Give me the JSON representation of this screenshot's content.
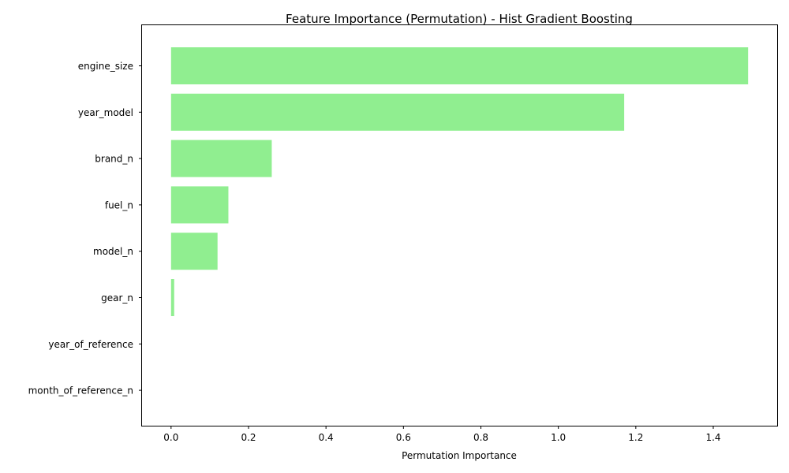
{
  "chart_data": {
    "type": "bar",
    "orientation": "horizontal",
    "title": "Feature Importance (Permutation) - Hist Gradient Boosting",
    "xlabel": "Permutation Importance",
    "ylabel": "",
    "categories": [
      "engine_size",
      "year_model",
      "brand_n",
      "fuel_n",
      "model_n",
      "gear_n",
      "year_of_reference",
      "month_of_reference_n"
    ],
    "values": [
      1.49,
      1.17,
      0.26,
      0.148,
      0.12,
      0.008,
      0.0,
      0.0
    ],
    "xlim": [
      -0.075,
      1.565
    ],
    "xticks": [
      0.0,
      0.2,
      0.4,
      0.6,
      0.8,
      1.0,
      1.2,
      1.4
    ],
    "xtick_labels": [
      "0.0",
      "0.2",
      "0.4",
      "0.6",
      "0.8",
      "1.0",
      "1.2",
      "1.4"
    ],
    "bar_color": "#90ee90",
    "grid": false,
    "legend": "none"
  }
}
